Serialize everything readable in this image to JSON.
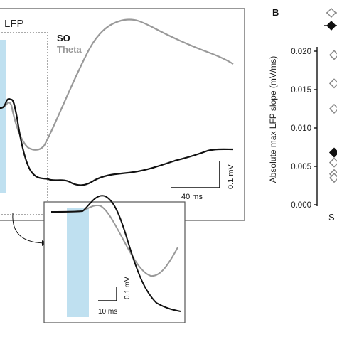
{
  "panel_a": {
    "title_fragment": "LFP",
    "legend": {
      "so": "SO",
      "theta": "Theta"
    },
    "scalebar_main": {
      "time": "40 ms",
      "amplitude": "0.1 mV"
    },
    "inset_scalebar": {
      "time": "10 ms",
      "amplitude": "0.1 mV"
    }
  },
  "panel_b": {
    "letter": "B",
    "ylabel": "Absolute max LFP slope (mV/ms)",
    "yticks": [
      "0.000",
      "0.005",
      "0.010",
      "0.015",
      "0.020"
    ],
    "xtick_fragment": "S"
  },
  "colors": {
    "so": "#111111",
    "theta": "#999999",
    "stimulus": "#bfe0f0"
  },
  "chart_data": [
    {
      "type": "line",
      "title": "LFP",
      "series": [
        {
          "name": "SO",
          "color": "#111111"
        },
        {
          "name": "Theta",
          "color": "#999999"
        }
      ],
      "annotations": [
        "40 ms",
        "0.1 mV"
      ]
    },
    {
      "type": "scatter",
      "ylabel": "Absolute max LFP slope (mV/ms)",
      "ylim": [
        0,
        0.02
      ],
      "ytick_labels": [
        "0.000",
        "0.005",
        "0.010",
        "0.015",
        "0.020"
      ],
      "points": [
        {
          "marker": "open-diamond",
          "y": 0.0195
        },
        {
          "marker": "open-diamond",
          "y": 0.0158
        },
        {
          "marker": "open-diamond",
          "y": 0.0125
        },
        {
          "marker": "open-diamond",
          "y": 0.0055
        },
        {
          "marker": "open-diamond",
          "y": 0.004
        },
        {
          "marker": "open-diamond",
          "y": 0.0035
        },
        {
          "marker": "filled-diamond",
          "y": 0.0068
        }
      ]
    }
  ]
}
